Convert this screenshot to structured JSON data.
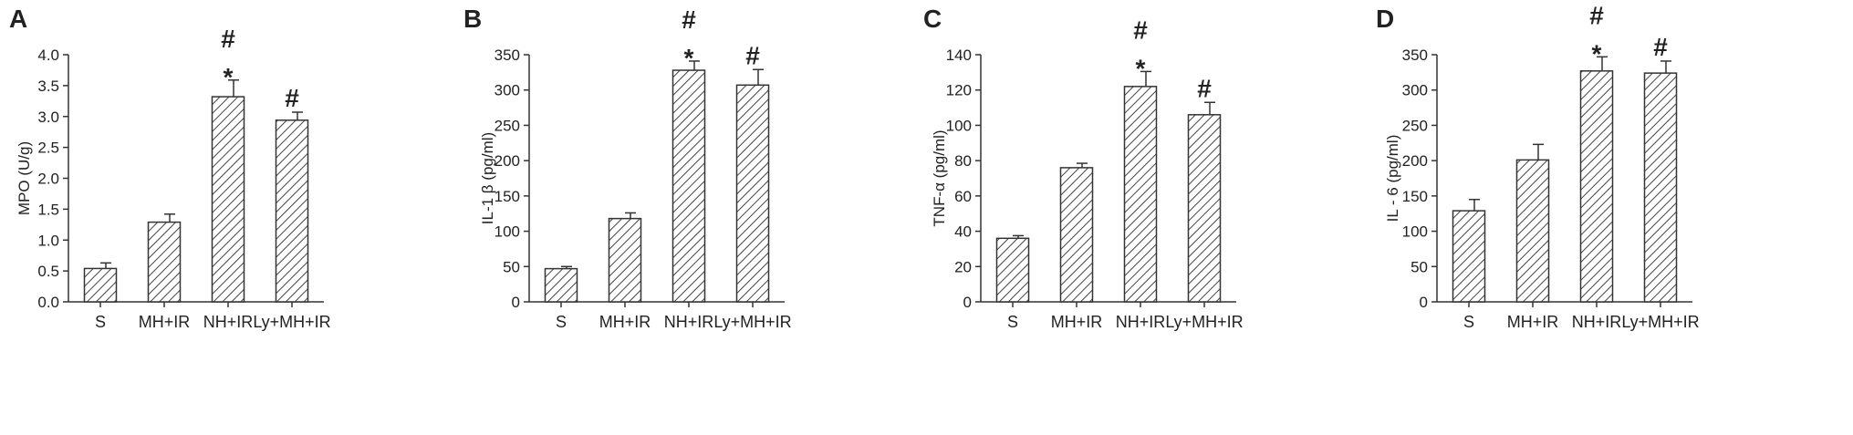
{
  "chart_data": [
    {
      "type": "bar",
      "panel": "A",
      "categories": [
        "S",
        "MH+IR",
        "NH+IR",
        "Ly+MH+IR"
      ],
      "values": [
        0.54,
        1.29,
        3.32,
        2.94
      ],
      "errors": [
        0.09,
        0.13,
        0.27,
        0.13
      ],
      "annotations": [
        [],
        [],
        [
          "*",
          "#"
        ],
        [
          "#"
        ]
      ],
      "ylabel": "MPO (U/g)",
      "ylim": [
        0,
        4.0
      ],
      "yticks": [
        0,
        0.5,
        1.0,
        1.5,
        2.0,
        2.5,
        3.0,
        3.5,
        4.0
      ],
      "ytick_labels": [
        "0.0",
        "0.5",
        "1.0",
        "1.5",
        "2.0",
        "2.5",
        "3.0",
        "3.5",
        "4.0"
      ],
      "grid": false
    },
    {
      "type": "bar",
      "panel": "B",
      "categories": [
        "S",
        "MH+IR",
        "NH+IR",
        "Ly+MH+IR"
      ],
      "values": [
        47,
        118,
        328,
        307
      ],
      "errors": [
        3,
        8,
        13,
        22
      ],
      "annotations": [
        [],
        [],
        [
          "*",
          "#"
        ],
        [
          "#"
        ]
      ],
      "ylabel": "IL-1 β (pg/ml)",
      "ylim": [
        0,
        350
      ],
      "yticks": [
        0,
        50,
        100,
        150,
        200,
        250,
        300,
        350
      ],
      "ytick_labels": [
        "0",
        "50",
        "100",
        "150",
        "200",
        "250",
        "300",
        "350"
      ],
      "grid": false
    },
    {
      "type": "bar",
      "panel": "C",
      "categories": [
        "S",
        "MH+IR",
        "NH+IR",
        "Ly+MH+IR"
      ],
      "values": [
        36,
        76,
        122,
        106
      ],
      "errors": [
        1.5,
        2.5,
        8.5,
        7
      ],
      "annotations": [
        [],
        [],
        [
          "*",
          "#"
        ],
        [
          "#"
        ]
      ],
      "ylabel": "TNF-α (pg/ml)",
      "ylim": [
        0,
        140
      ],
      "yticks": [
        0,
        20,
        40,
        60,
        80,
        100,
        120,
        140
      ],
      "ytick_labels": [
        "0",
        "20",
        "40",
        "60",
        "80",
        "100",
        "120",
        "140"
      ],
      "grid": false
    },
    {
      "type": "bar",
      "panel": "D",
      "categories": [
        "S",
        "MH+IR",
        "NH+IR",
        "Ly+MH+IR"
      ],
      "values": [
        129,
        201,
        327,
        324
      ],
      "errors": [
        16,
        22,
        20,
        17
      ],
      "annotations": [
        [],
        [],
        [
          "*",
          "#"
        ],
        [
          "#"
        ]
      ],
      "ylabel": "IL - 6 (pg/ml)",
      "ylim": [
        0,
        350
      ],
      "yticks": [
        0,
        50,
        100,
        150,
        200,
        250,
        300,
        350
      ],
      "ytick_labels": [
        "0",
        "50",
        "100",
        "150",
        "200",
        "250",
        "300",
        "350"
      ],
      "grid": false
    }
  ],
  "style": {
    "bar_fill": "#ffffff",
    "bar_hatch": "#444444",
    "axis_color": "#333333",
    "text_color": "#222222"
  }
}
